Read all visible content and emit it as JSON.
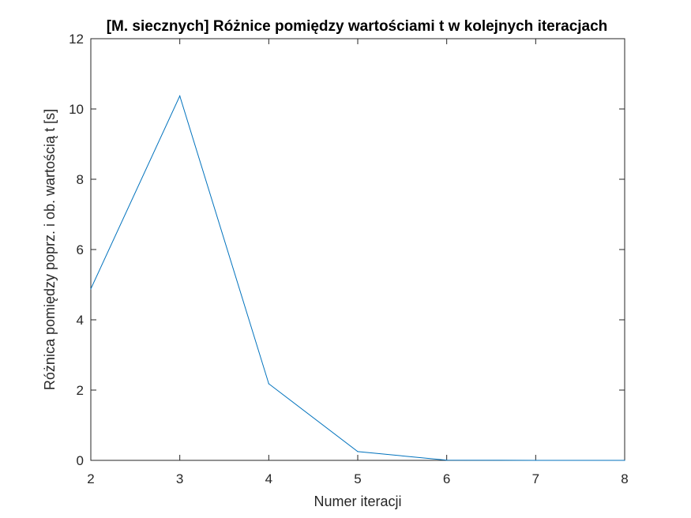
{
  "chart_data": {
    "type": "line",
    "title": "[M. siecznych] Różnice pomiędzy wartościami t w kolejnych iteracjach",
    "xlabel": "Numer iteracji",
    "ylabel": "Różnica pomiędzy poprz. i ob. wartością t [s]",
    "x": [
      2,
      3,
      4,
      5,
      6,
      7,
      8
    ],
    "series": [
      {
        "values": [
          4.88,
          10.37,
          2.18,
          0.25,
          0.005,
          0.0,
          0.0
        ],
        "color": "#0072BD"
      }
    ],
    "xlim": [
      2,
      8
    ],
    "ylim": [
      0,
      12
    ],
    "xticks": [
      "2",
      "3",
      "4",
      "5",
      "6",
      "7",
      "8"
    ],
    "yticks": [
      "0",
      "2",
      "4",
      "6",
      "8",
      "10",
      "12"
    ],
    "grid": false,
    "box": true
  }
}
